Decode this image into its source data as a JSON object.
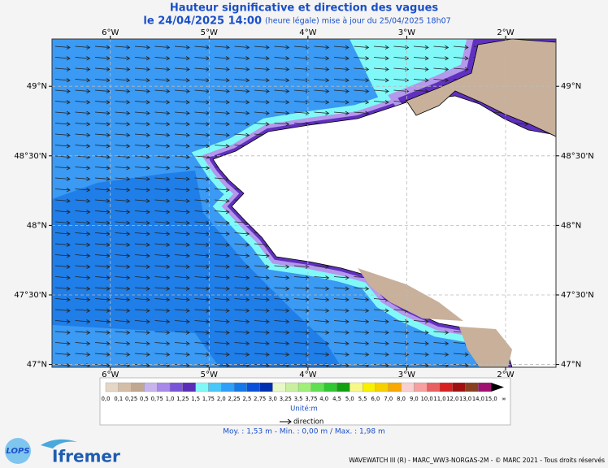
{
  "header": {
    "title": "Hauteur significative et direction des vagues",
    "date": "le 24/04/2025 14:00",
    "note": "(heure légale) mise à jour du 25/04/2025 18h07"
  },
  "map": {
    "lon_range": [
      -6.59,
      -1.49
    ],
    "lat_range": [
      46.98,
      49.34
    ],
    "lon_ticks": [
      {
        "value": -6,
        "label": "6°W"
      },
      {
        "value": -5,
        "label": "5°W"
      },
      {
        "value": -4,
        "label": "4°W"
      },
      {
        "value": -3,
        "label": "3°W"
      },
      {
        "value": -2,
        "label": "2°W"
      }
    ],
    "lat_ticks": [
      {
        "value": 49,
        "label": "49°N"
      },
      {
        "value": 48.5,
        "label": "48°30'N"
      },
      {
        "value": 48,
        "label": "48°N"
      },
      {
        "value": 47.5,
        "label": "47°30'N"
      },
      {
        "value": 47,
        "label": "47°N"
      }
    ]
  },
  "legend": {
    "labels": [
      "0,0",
      "0,1",
      "0,25",
      "0,5",
      "0,75",
      "1,0",
      "1,25",
      "1,5",
      "1,75",
      "2,0",
      "2,25",
      "2,5",
      "2,75",
      "3,0",
      "3,25",
      "3,5",
      "3,75",
      "4,0",
      "4,5",
      "5,0",
      "5,5",
      "6,0",
      "7,0",
      "8,0",
      "9,0",
      "10,0",
      "11,0",
      "12,0",
      "13,0",
      "14,0",
      "15,0",
      "∞"
    ],
    "colors": [
      "#e6d6c6",
      "#d4bea8",
      "#c0a890",
      "#c8b4ec",
      "#a888e8",
      "#7a54d8",
      "#5a2cb8",
      "#80f8f8",
      "#48c8f8",
      "#2ea0f8",
      "#1478e8",
      "#0850d8",
      "#0030b0",
      "#e8f8c8",
      "#c8f0a0",
      "#a0f078",
      "#60e050",
      "#30c830",
      "#10a010",
      "#f8f888",
      "#f8f000",
      "#f8d000",
      "#f8a800",
      "#f8d0d0",
      "#f8a0a0",
      "#e86060",
      "#d82020",
      "#a01010",
      "#884020",
      "#a01070",
      "#000000"
    ],
    "unit": "Unité:m",
    "direction": "direction"
  },
  "stats": "Moy. : 1,53 m  -  Min. : 0,00 m / Max. : 1,98 m",
  "logos": {
    "lops": "LOPS",
    "ifremer": "Ifremer"
  },
  "footer": "WAVEWATCH III (R) - MARC_WW3-NORGAS-2M - © MARC 2021 - Tous droits réservés"
}
